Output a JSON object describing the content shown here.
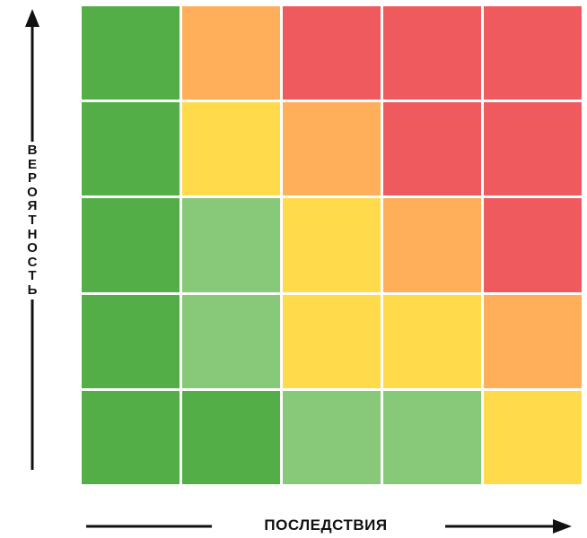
{
  "axes": {
    "y_label": "ВЕРОЯТНОСТЬ",
    "x_label": "ПОСЛЕДСТВИЯ"
  },
  "colors": {
    "dark_green": "#54AE47",
    "light_green": "#88C979",
    "yellow": "#FFDB4C",
    "orange": "#FFAE5A",
    "red": "#EF5A5E"
  },
  "matrix": {
    "rows": [
      [
        "dark_green",
        "orange",
        "red",
        "red",
        "red"
      ],
      [
        "dark_green",
        "yellow",
        "orange",
        "red",
        "red"
      ],
      [
        "dark_green",
        "light_green",
        "yellow",
        "orange",
        "red"
      ],
      [
        "dark_green",
        "light_green",
        "yellow",
        "yellow",
        "orange"
      ],
      [
        "dark_green",
        "dark_green",
        "light_green",
        "light_green",
        "yellow"
      ]
    ]
  }
}
